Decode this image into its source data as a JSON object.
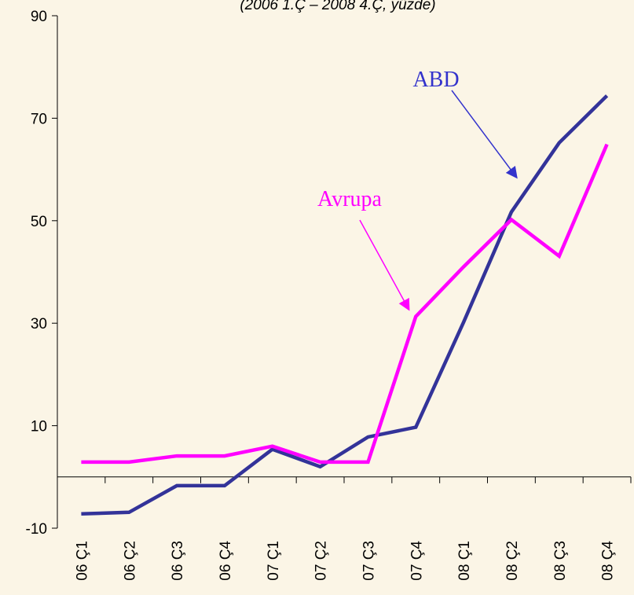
{
  "chart_data": {
    "type": "line",
    "subtitle": "(2006 1.Ç – 2008 4.Ç, yüzde)",
    "categories": [
      "06 Ç1",
      "06 Ç2",
      "06 Ç3",
      "06 Ç4",
      "07 Ç1",
      "07 Ç2",
      "07 Ç3",
      "07 Ç4",
      "08 Ç1",
      "08 Ç2",
      "08 Ç3",
      "08 Ç4"
    ],
    "series": [
      {
        "name": "ABD",
        "color": "#333399",
        "label_color": "#3333cc",
        "values": [
          -7.2,
          -6.9,
          -1.7,
          -1.7,
          5.4,
          2,
          7.8,
          9.7,
          30.2,
          51.7,
          65.2,
          74.4
        ]
      },
      {
        "name": "Avrupa",
        "color": "#ff00ff",
        "label_color": "#ff00ff",
        "values": [
          2.9,
          2.9,
          4.1,
          4.1,
          6,
          2.9,
          2.9,
          31.3,
          41,
          50.2,
          43.1,
          64.9
        ]
      }
    ],
    "ylim": [
      -10,
      90
    ],
    "yticks": [
      -10,
      10,
      30,
      50,
      70,
      90
    ],
    "grid": false
  }
}
